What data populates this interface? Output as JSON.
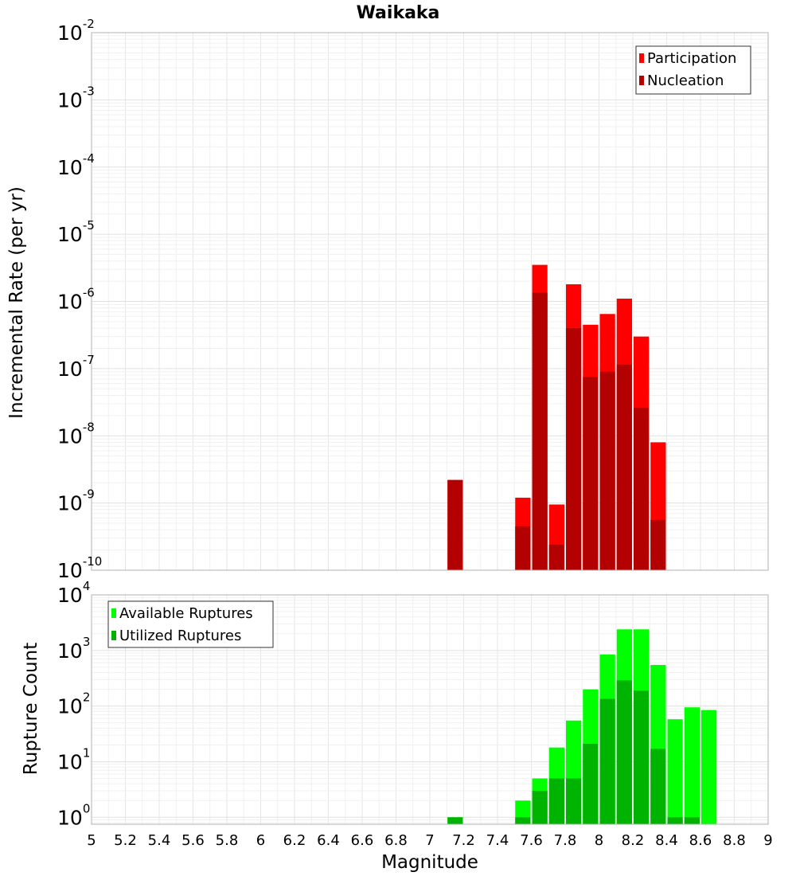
{
  "figure": {
    "title": "Waikaka",
    "xlabel": "Magnitude"
  },
  "chart_data": [
    {
      "type": "bar",
      "scale": "log",
      "ylabel": "Incremental Rate (per yr)",
      "xlim": [
        5,
        9
      ],
      "ylim": [
        1e-10,
        0.01
      ],
      "yticks": [
        {
          "base": "10",
          "exp": "-10",
          "value": 1e-10
        },
        {
          "base": "10",
          "exp": "-9",
          "value": 1e-09
        },
        {
          "base": "10",
          "exp": "-8",
          "value": 1e-08
        },
        {
          "base": "10",
          "exp": "-7",
          "value": 1e-07
        },
        {
          "base": "10",
          "exp": "-6",
          "value": 1e-06
        },
        {
          "base": "10",
          "exp": "-5",
          "value": 1e-05
        },
        {
          "base": "10",
          "exp": "-4",
          "value": 0.0001
        },
        {
          "base": "10",
          "exp": "-3",
          "value": 0.001
        },
        {
          "base": "10",
          "exp": "-2",
          "value": 0.01
        }
      ],
      "legend_position": "top-right",
      "grid": true,
      "bin_width": 0.1,
      "x": [
        7.15,
        7.55,
        7.65,
        7.75,
        7.85,
        7.95,
        8.05,
        8.15,
        8.25,
        8.35
      ],
      "series": [
        {
          "name": "Participation",
          "color": "#ff0000",
          "values": [
            2.2e-09,
            1.2e-09,
            3.5e-06,
            9.5e-10,
            1.8e-06,
            4.5e-07,
            6.5e-07,
            1.1e-06,
            3e-07,
            8e-09
          ]
        },
        {
          "name": "Nucleation",
          "color": "#b30000",
          "values": [
            2.2e-09,
            4.5e-10,
            1.35e-06,
            2.4e-10,
            4e-07,
            7.5e-08,
            9e-08,
            1.15e-07,
            2.6e-08,
            5.6e-10
          ]
        }
      ]
    },
    {
      "type": "bar",
      "scale": "log",
      "ylabel": "Rupture Count",
      "xlim": [
        5,
        9
      ],
      "ylim": [
        0.75,
        10000
      ],
      "yticks": [
        {
          "base": "10",
          "exp": "0",
          "value": 1
        },
        {
          "base": "10",
          "exp": "1",
          "value": 10
        },
        {
          "base": "10",
          "exp": "2",
          "value": 100
        },
        {
          "base": "10",
          "exp": "3",
          "value": 1000
        },
        {
          "base": "10",
          "exp": "4",
          "value": 10000
        }
      ],
      "legend_position": "top-left",
      "grid": true,
      "bin_width": 0.1,
      "x": [
        7.15,
        7.55,
        7.65,
        7.75,
        7.85,
        7.95,
        8.05,
        8.15,
        8.25,
        8.35,
        8.45,
        8.55,
        8.65
      ],
      "series": [
        {
          "name": "Available Ruptures",
          "color": "#00ff00",
          "values": [
            1,
            2,
            5,
            18,
            55,
            200,
            850,
            2400,
            2400,
            550,
            58,
            95,
            85
          ]
        },
        {
          "name": "Utilized Ruptures",
          "color": "#00b300",
          "values": [
            1,
            1,
            3,
            5,
            5,
            21,
            135,
            290,
            190,
            17,
            1,
            1,
            0
          ]
        }
      ]
    }
  ],
  "xticks": [
    "5",
    "5.2",
    "5.4",
    "5.6",
    "5.8",
    "6",
    "6.2",
    "6.4",
    "6.6",
    "6.8",
    "7",
    "7.2",
    "7.4",
    "7.6",
    "7.8",
    "8",
    "8.2",
    "8.4",
    "8.6",
    "8.8",
    "9"
  ]
}
